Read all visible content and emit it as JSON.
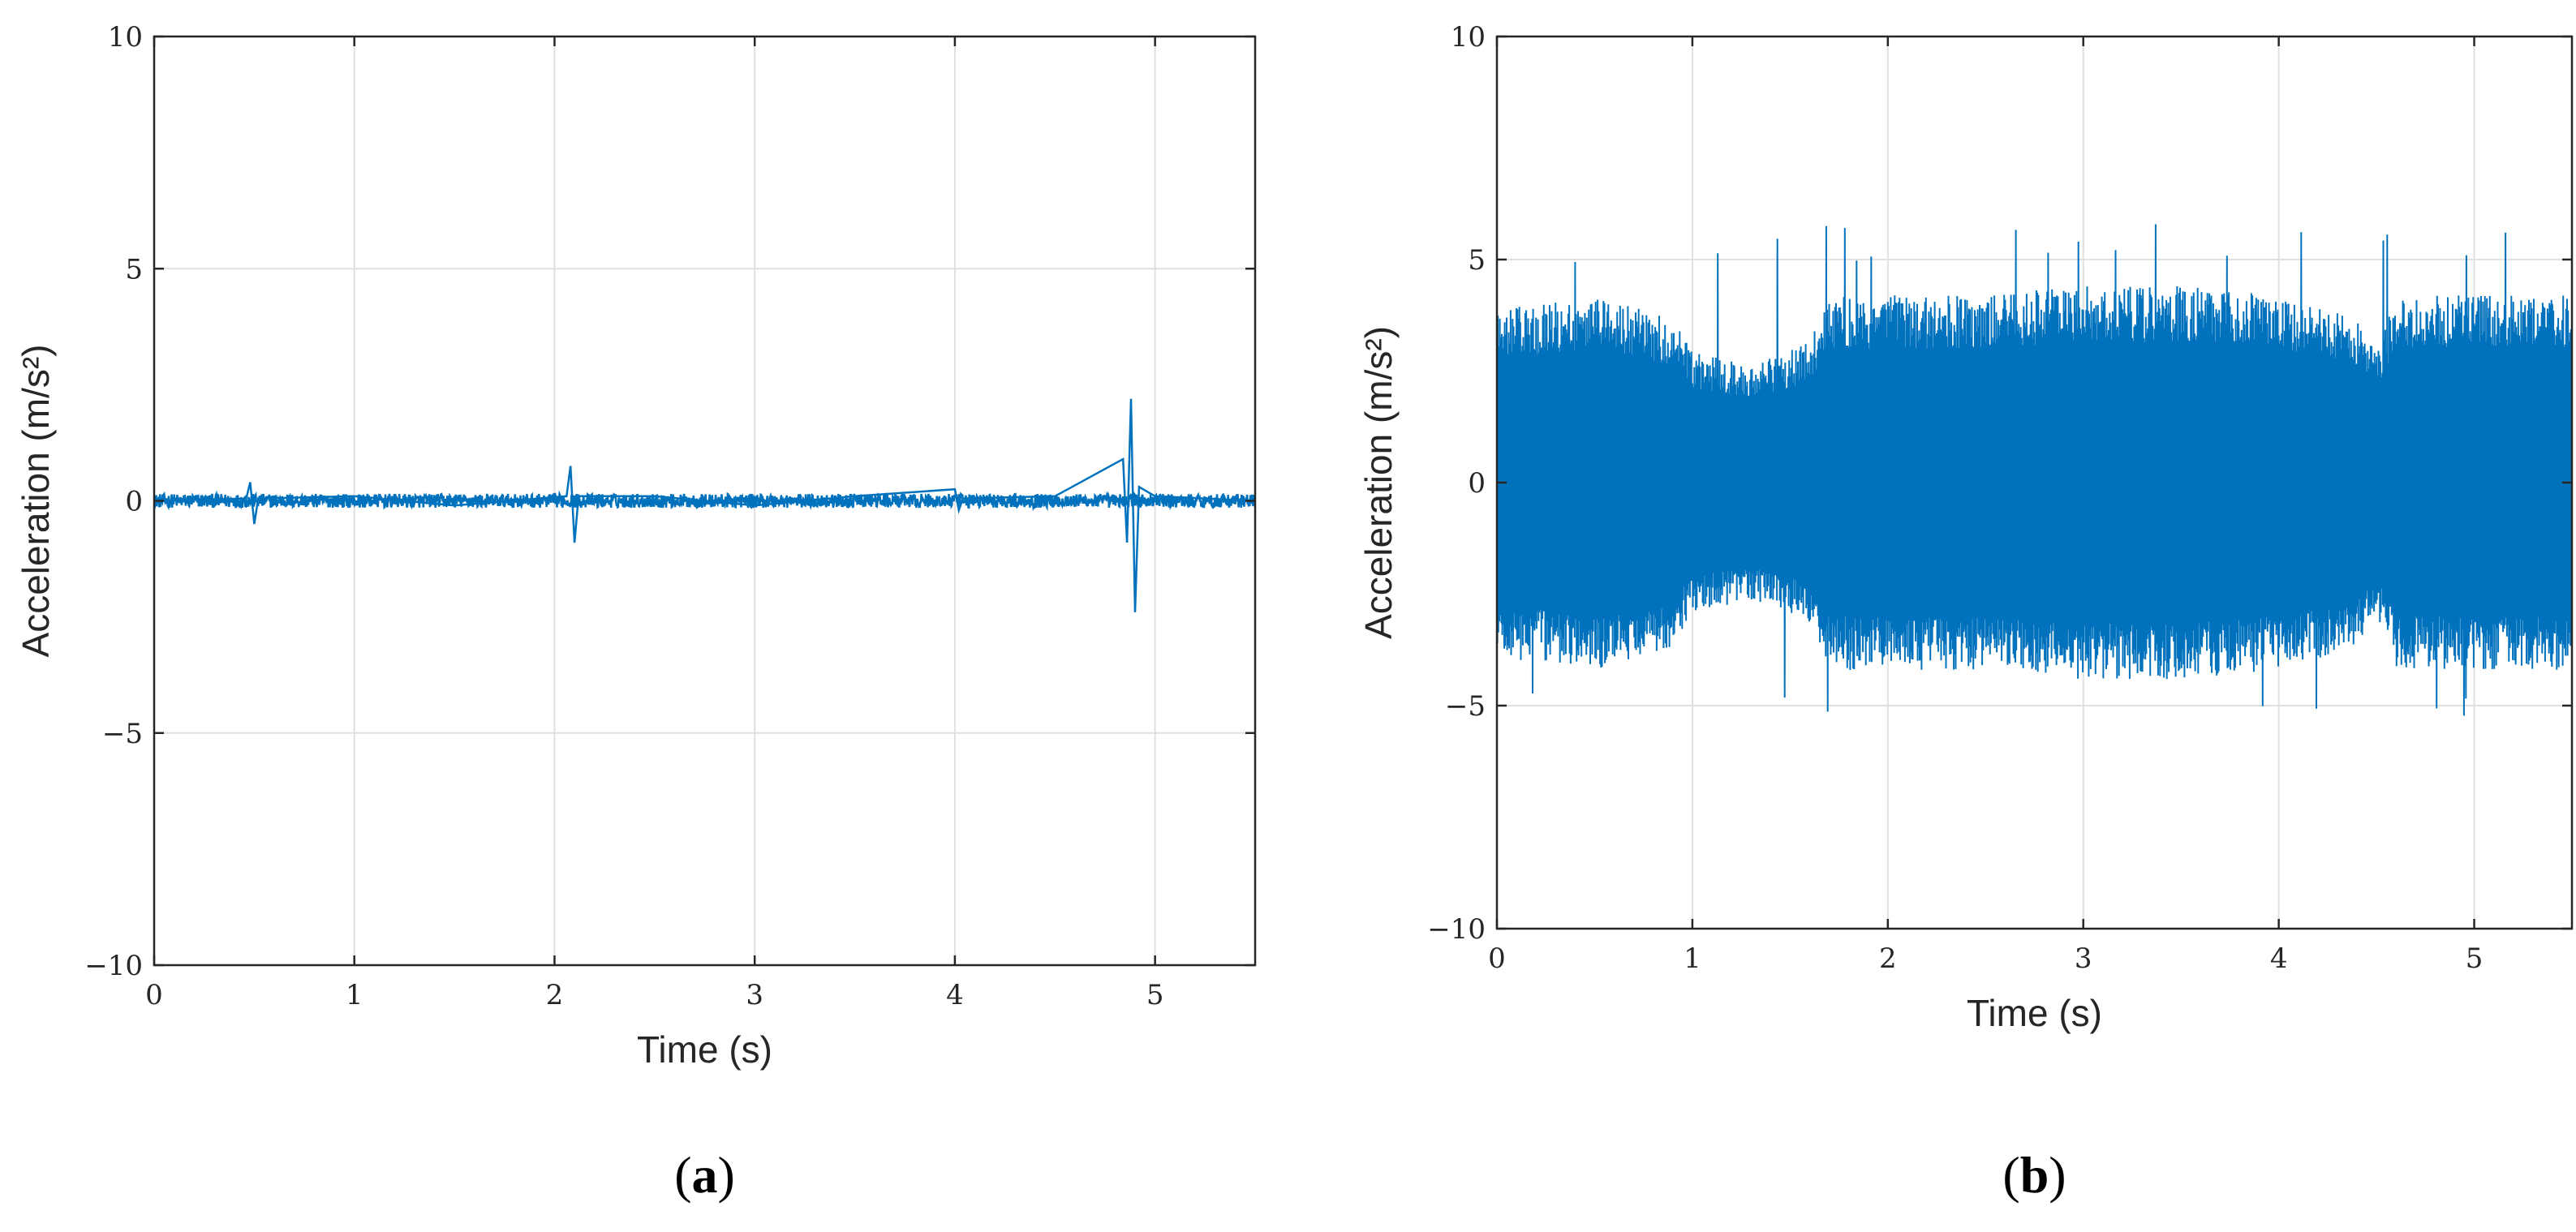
{
  "chart_data": [
    {
      "type": "line",
      "panel_label": "a",
      "xlabel": "Time (s)",
      "ylabel": "Acceleration (m/s²)",
      "xlim": [
        0,
        5.5
      ],
      "ylim": [
        -10,
        10
      ],
      "xticks": [
        0,
        1,
        2,
        3,
        4,
        5
      ],
      "yticks": [
        -10,
        -5,
        0,
        5,
        10
      ],
      "xtick_labels": [
        "0",
        "1",
        "2",
        "3",
        "4",
        "5"
      ],
      "ytick_labels": [
        "−10",
        "−5",
        "0",
        "5",
        "10"
      ],
      "grid": true,
      "color": "#0072BD",
      "series": [
        {
          "x": [
            0.0,
            0.46,
            0.48,
            0.5,
            0.52,
            1.0,
            1.5,
            2.06,
            2.08,
            2.1,
            2.12,
            2.5,
            3.0,
            3.5,
            4.0,
            4.02,
            4.04,
            4.5,
            4.84,
            4.86,
            4.88,
            4.9,
            4.92,
            5.0,
            5.5
          ],
          "y": [
            0.0,
            0.05,
            0.4,
            -0.5,
            0.05,
            0.1,
            -0.1,
            0.1,
            0.75,
            -0.9,
            0.1,
            0.1,
            -0.1,
            0.1,
            0.25,
            -0.2,
            0.05,
            0.1,
            0.9,
            -0.9,
            2.2,
            -2.4,
            0.3,
            0.1,
            0.0
          ],
          "baseline_noise_amplitude": 0.15
        }
      ],
      "caption": "(a)"
    },
    {
      "type": "line",
      "panel_label": "b",
      "xlabel": "Time (s)",
      "ylabel": "Acceleration (m/s²)",
      "xlim": [
        0,
        5.5
      ],
      "ylim": [
        -10,
        10
      ],
      "xticks": [
        0,
        1,
        2,
        3,
        4,
        5
      ],
      "yticks": [
        -10,
        -5,
        0,
        5,
        10
      ],
      "xtick_labels": [
        "0",
        "1",
        "2",
        "3",
        "4",
        "5"
      ],
      "ytick_labels": [
        "−10",
        "−5",
        "0",
        "5",
        "10"
      ],
      "grid": true,
      "color": "#0072BD",
      "series": [
        {
          "envelope_x": [
            0.0,
            0.2,
            0.5,
            0.9,
            1.0,
            1.3,
            1.6,
            1.7,
            2.0,
            2.5,
            3.0,
            3.5,
            4.0,
            4.4,
            4.5,
            4.6,
            5.0,
            5.5
          ],
          "envelope_upper": [
            3.8,
            3.8,
            4.0,
            3.5,
            2.8,
            2.5,
            3.0,
            4.0,
            4.0,
            4.0,
            4.2,
            4.2,
            4.0,
            3.5,
            2.8,
            4.0,
            4.0,
            4.0
          ],
          "envelope_lower": [
            -3.8,
            -3.8,
            -4.0,
            -3.5,
            -2.8,
            -2.5,
            -3.0,
            -4.0,
            -4.0,
            -4.0,
            -4.2,
            -4.2,
            -4.0,
            -3.5,
            -2.8,
            -4.0,
            -4.0,
            -4.0
          ],
          "peak_max": 5.8,
          "peak_min": -5.5
        }
      ],
      "caption": "(b)"
    }
  ]
}
